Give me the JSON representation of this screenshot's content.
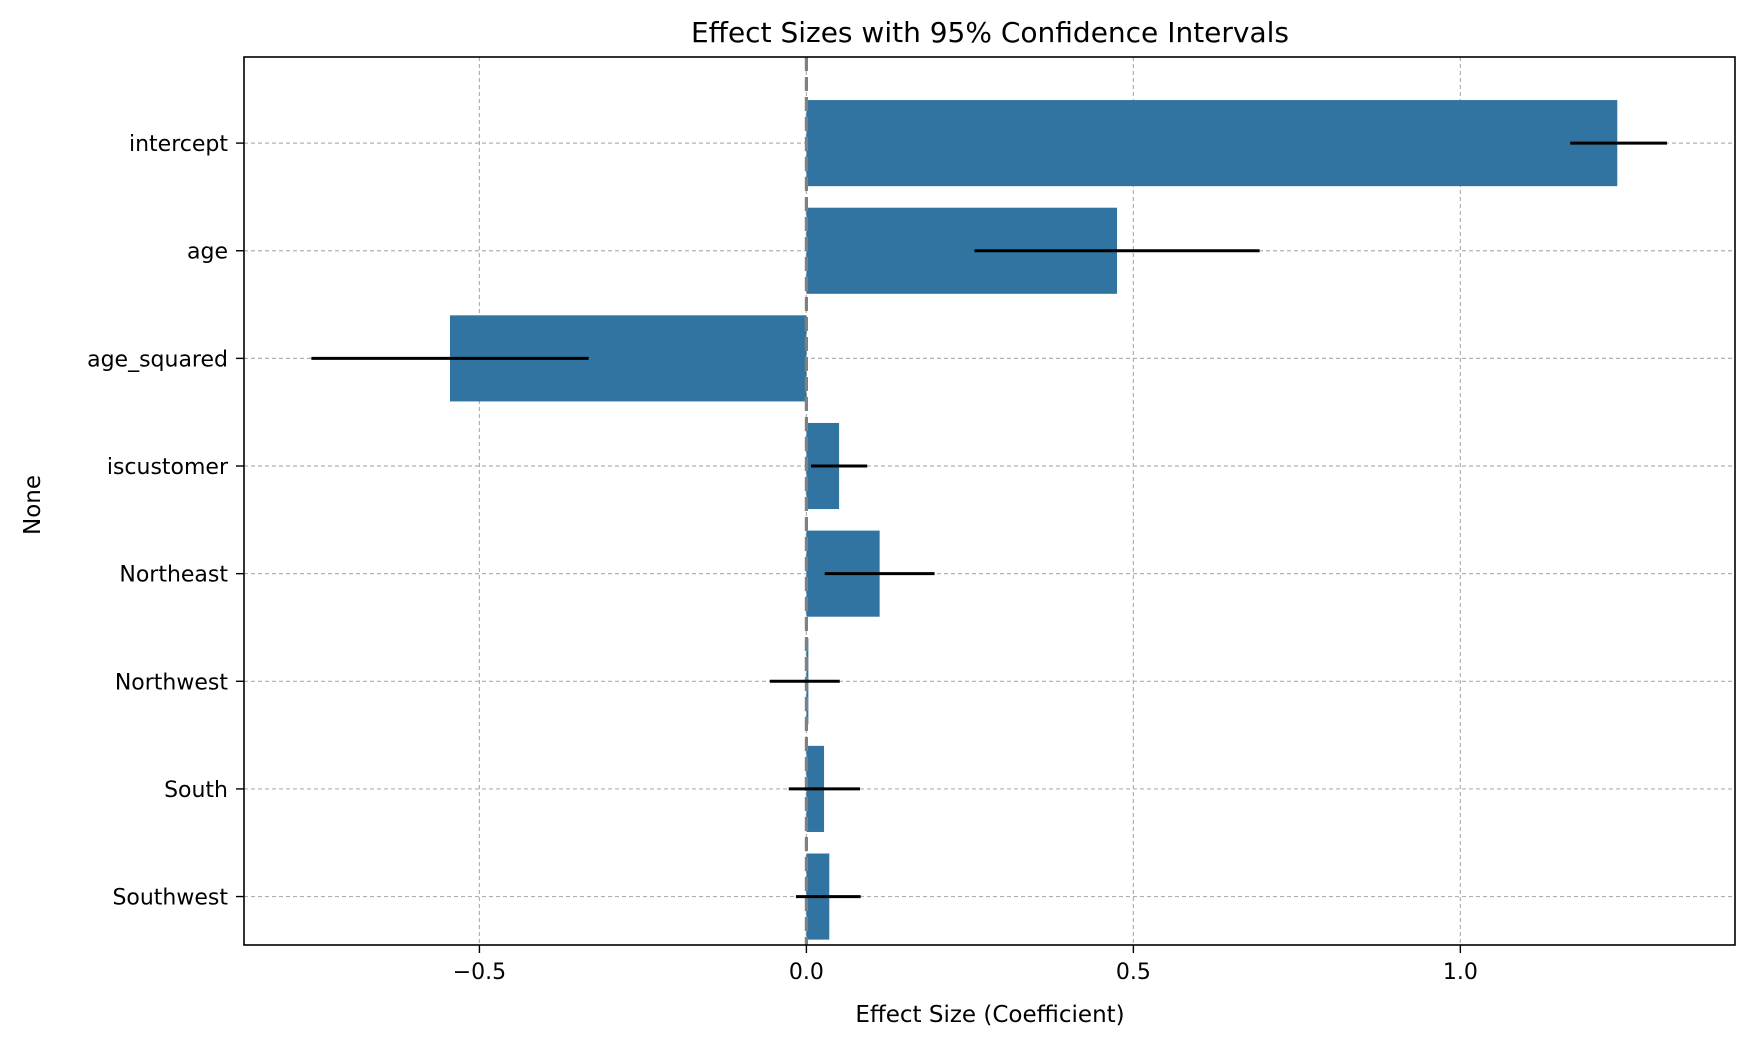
{
  "chart_data": {
    "type": "bar",
    "orientation": "horizontal",
    "title": "Effect Sizes with 95% Confidence Intervals",
    "xlabel": "Effect Size (Coefficient)",
    "ylabel": "None",
    "categories": [
      "intercept",
      "age",
      "age_squared",
      "iscustomer",
      "Northeast",
      "Northwest",
      "South",
      "Southwest"
    ],
    "values": [
      1.24,
      0.475,
      -0.545,
      0.05,
      0.112,
      0.003,
      0.027,
      0.035
    ],
    "ci_lower": [
      1.168,
      0.257,
      -0.757,
      0.007,
      0.028,
      -0.056,
      -0.027,
      -0.016
    ],
    "ci_upper": [
      1.316,
      0.693,
      -0.333,
      0.093,
      0.196,
      0.051,
      0.082,
      0.083
    ],
    "xlim": [
      -0.86,
      1.42
    ],
    "xticks": [
      -0.5,
      0.0,
      0.5,
      1.0
    ],
    "xtick_labels": [
      "−0.5",
      "0.0",
      "0.5",
      "1.0"
    ],
    "reference_line": 0.0,
    "grid": true,
    "colors": {
      "bar": "#3274a1",
      "error_bar": "#000000",
      "reference_line": "#808080",
      "grid": "#b0b0b0"
    }
  }
}
